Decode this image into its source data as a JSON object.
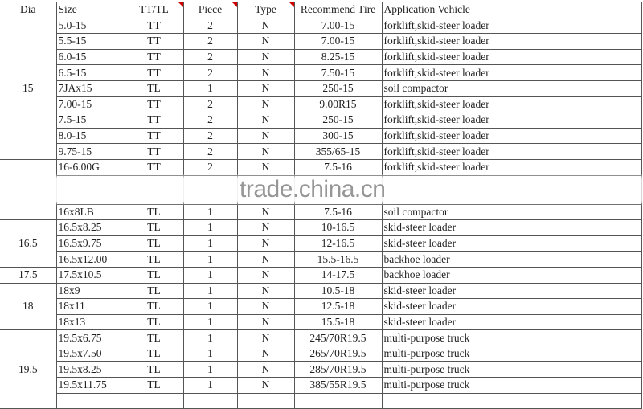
{
  "headers": [
    "Dia",
    "Size",
    "TT/TL",
    "Piece",
    "Type",
    "Recommend Tire",
    "Application Vehicle"
  ],
  "groups": [
    {
      "dia": "15",
      "rows": [
        [
          "5.0-15",
          "TT",
          "2",
          "N",
          "7.00-15",
          "forklift,skid-steer loader"
        ],
        [
          "5.5-15",
          "TT",
          "2",
          "N",
          "7.00-15",
          "forklift,skid-steer loader"
        ],
        [
          "6.0-15",
          "TT",
          "2",
          "N",
          "8.25-15",
          "forklift,skid-steer loader"
        ],
        [
          "6.5-15",
          "TT",
          "2",
          "N",
          "7.50-15",
          "forklift,skid-steer loader"
        ],
        [
          "7JAx15",
          "TL",
          "1",
          "N",
          "250-15",
          "soil compactor"
        ],
        [
          "7.00-15",
          "TT",
          "2",
          "N",
          "9.00R15",
          "forklift,skid-steer loader"
        ],
        [
          "7.5-15",
          "TT",
          "2",
          "N",
          "250-15",
          "forklift,skid-steer loader"
        ],
        [
          "8.0-15",
          "TT",
          "2",
          "N",
          "300-15",
          "forklift,skid-steer loader"
        ],
        [
          "9.75-15",
          "TT",
          "2",
          "N",
          "355/65-15",
          "forklift,skid-steer loader"
        ]
      ]
    },
    {
      "dia": "",
      "rows": [
        [
          "16-6.00G",
          "TT",
          "2",
          "N",
          "7.5-16",
          "forklift,skid-steer loader"
        ],
        [
          "",
          "",
          "",
          "",
          "",
          ""
        ],
        [
          "16x8LB",
          "TL",
          "1",
          "N",
          "7.5-16",
          "soil compactor"
        ]
      ]
    },
    {
      "dia": "16.5",
      "rows": [
        [
          "16.5x8.25",
          "TL",
          "1",
          "N",
          "10-16.5",
          "skid-steer loader"
        ],
        [
          "16.5x9.75",
          "TL",
          "1",
          "N",
          "12-16.5",
          "skid-steer loader"
        ],
        [
          "16.5x12.00",
          "TL",
          "1",
          "N",
          "15.5-16.5",
          "backhoe loader"
        ]
      ]
    },
    {
      "dia": "17.5",
      "rows": [
        [
          "17.5x10.5",
          "TL",
          "1",
          "N",
          "14-17.5",
          "backhoe loader"
        ]
      ]
    },
    {
      "dia": "18",
      "rows": [
        [
          "18x9",
          "TL",
          "1",
          "N",
          "10.5-18",
          "skid-steer loader"
        ],
        [
          "18x11",
          "TL",
          "1",
          "N",
          "12.5-18",
          "skid-steer loader"
        ],
        [
          "18x13",
          "TL",
          "1",
          "N",
          "15.5-18",
          "skid-steer loader"
        ]
      ]
    },
    {
      "dia": "19.5",
      "rows": [
        [
          "19.5x6.75",
          "TL",
          "1",
          "N",
          "245/70R19.5",
          "multi-purpose truck"
        ],
        [
          "19.5x7.50",
          "TL",
          "1",
          "N",
          "265/70R19.5",
          "multi-purpose truck"
        ],
        [
          "19.5x8.25",
          "TL",
          "1",
          "N",
          "285/70R19.5",
          "multi-purpose truck"
        ],
        [
          "19.5x11.75",
          "TL",
          "1",
          "N",
          "385/55R19.5",
          "multi-purpose truck"
        ],
        [
          "",
          "",
          "",
          "",
          "",
          ""
        ]
      ]
    }
  ],
  "watermark": "trade.china.cn",
  "colors": {
    "comment_flag": "#cc0000",
    "grid": "#555555"
  }
}
